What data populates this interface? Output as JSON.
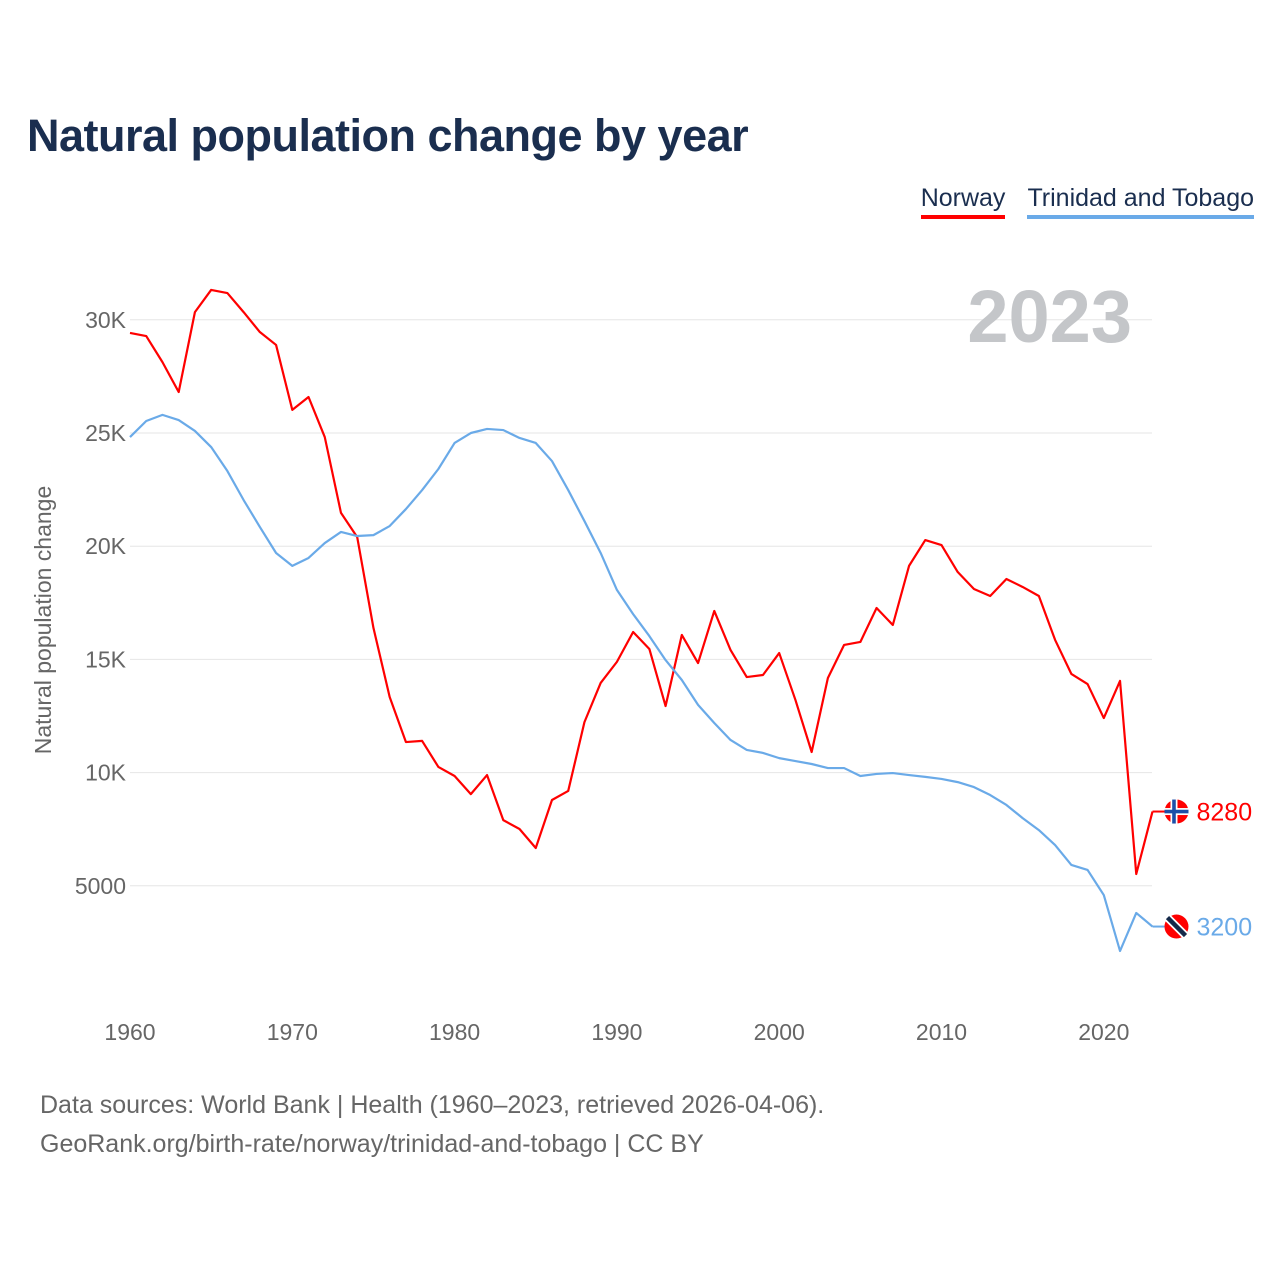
{
  "title": "Natural population change by year",
  "footer": {
    "line1": "Data sources: World Bank | Health (1960–2023, retrieved 2026-04-06).",
    "line2": "GeoRank.org/birth-rate/norway/trinidad-and-tobago | CC BY"
  },
  "chart_data": {
    "type": "line",
    "title": "Natural population change by year",
    "xlabel": "",
    "ylabel": "Natural population change",
    "year_watermark": "2023",
    "xlim": [
      1960,
      2023
    ],
    "ylim": [
      0,
      32000
    ],
    "x_ticks": [
      "1960",
      "1970",
      "1980",
      "1990",
      "2000",
      "2010",
      "2020"
    ],
    "y_ticks": [
      {
        "v": 5000,
        "label": "5000"
      },
      {
        "v": 10000,
        "label": "10K"
      },
      {
        "v": 15000,
        "label": "15K"
      },
      {
        "v": 20000,
        "label": "20K"
      },
      {
        "v": 25000,
        "label": "25K"
      },
      {
        "v": 30000,
        "label": "30K"
      }
    ],
    "grid": true,
    "legend_position": "top-right",
    "x": [
      1960,
      1961,
      1962,
      1963,
      1964,
      1965,
      1966,
      1967,
      1968,
      1969,
      1970,
      1971,
      1972,
      1973,
      1974,
      1975,
      1976,
      1977,
      1978,
      1979,
      1980,
      1981,
      1982,
      1983,
      1984,
      1985,
      1986,
      1987,
      1988,
      1989,
      1990,
      1991,
      1992,
      1993,
      1994,
      1995,
      1996,
      1997,
      1998,
      1999,
      2000,
      2001,
      2002,
      2003,
      2004,
      2005,
      2006,
      2007,
      2008,
      2009,
      2010,
      2011,
      2012,
      2013,
      2014,
      2015,
      2016,
      2017,
      2018,
      2019,
      2020,
      2021,
      2022,
      2023
    ],
    "series": [
      {
        "name": "Norway",
        "color": "#ff0000",
        "end_label": "8280",
        "values": [
          29420,
          29280,
          28130,
          26810,
          30340,
          31320,
          31180,
          30340,
          29460,
          28890,
          26020,
          26590,
          24820,
          21470,
          20400,
          16390,
          13340,
          11350,
          11400,
          10250,
          9850,
          9050,
          9890,
          7900,
          7510,
          6670,
          8790,
          9190,
          12230,
          13960,
          14890,
          16210,
          15460,
          12940,
          16080,
          14840,
          17140,
          15420,
          14220,
          14310,
          15280,
          13210,
          10910,
          14180,
          15640,
          15770,
          17270,
          16520,
          19130,
          20270,
          20050,
          18860,
          18110,
          17800,
          18550,
          18200,
          17800,
          15860,
          14360,
          13910,
          12410,
          14050,
          5520,
          8280
        ]
      },
      {
        "name": "Trinidad and Tobago",
        "color": "#6aaae8",
        "end_label": "3200",
        "values": [
          24820,
          25530,
          25800,
          25570,
          25090,
          24380,
          23320,
          22040,
          20850,
          19700,
          19130,
          19480,
          20140,
          20630,
          20450,
          20490,
          20890,
          21640,
          22480,
          23410,
          24560,
          25000,
          25180,
          25130,
          24780,
          24560,
          23760,
          22480,
          21110,
          19700,
          18070,
          17000,
          16030,
          14970,
          14090,
          12990,
          12190,
          11440,
          11000,
          10870,
          10640,
          10510,
          10380,
          10200,
          10200,
          9850,
          9940,
          9980,
          9890,
          9810,
          9720,
          9580,
          9360,
          9010,
          8570,
          7990,
          7460,
          6800,
          5920,
          5700,
          4590,
          2120,
          3800,
          3200
        ]
      }
    ]
  }
}
